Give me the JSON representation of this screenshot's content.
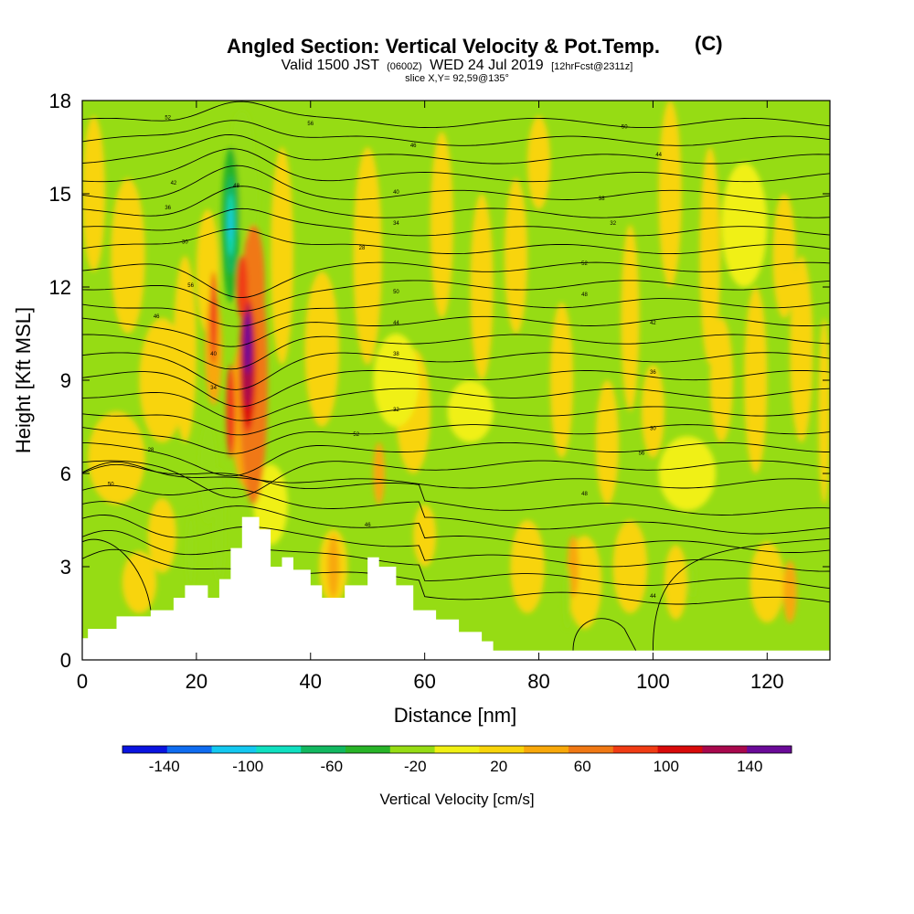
{
  "chart_data": {
    "type": "heatmap",
    "title": "Angled Section: Vertical Velocity & Pot.Temp.",
    "title_unit": "(C)",
    "subtitle_parts": [
      "Valid 1500 JST",
      "(0600Z)",
      "WED 24 Jul 2019",
      "[12hrFcst@2311z]"
    ],
    "slice_label": "slice X,Y= 92,59@135°",
    "xlabel": "Distance [nm]",
    "ylabel": "Height [Kft MSL]",
    "xlim": [
      0,
      131
    ],
    "ylim": [
      0,
      18
    ],
    "x_ticks": [
      0,
      20,
      40,
      60,
      80,
      100,
      120
    ],
    "y_ticks": [
      0,
      3,
      6,
      9,
      12,
      15,
      18
    ],
    "colorbar": {
      "title": "Vertical Velocity [cm/s]",
      "levels": [
        -160,
        -140,
        -120,
        -100,
        -80,
        -60,
        -40,
        -20,
        0,
        20,
        40,
        60,
        80,
        100,
        120,
        140,
        160
      ],
      "colors": [
        "#0a14e0",
        "#0f6cf0",
        "#14c8f0",
        "#10e0c0",
        "#12b860",
        "#28b428",
        "#96dc14",
        "#f0f014",
        "#f8d40a",
        "#f8a80a",
        "#f07814",
        "#f03c14",
        "#d80a0a",
        "#a8084c",
        "#6a0a98"
      ],
      "tick_labels": [
        "-140",
        "-100",
        "-60",
        "-20",
        "20",
        "60",
        "100",
        "140"
      ],
      "tick_values": [
        -140,
        -100,
        -60,
        -20,
        20,
        60,
        100,
        140
      ]
    },
    "contour_labels": [
      "52",
      "56",
      "50",
      "48",
      "46",
      "44",
      "42",
      "40",
      "38",
      "36",
      "34",
      "32",
      "30",
      "28"
    ],
    "terrain": [
      [
        0,
        0.7
      ],
      [
        1,
        1.0
      ],
      [
        6,
        1.4
      ],
      [
        12,
        1.6
      ],
      [
        16,
        2.0
      ],
      [
        18,
        2.4
      ],
      [
        22,
        2.0
      ],
      [
        24,
        2.6
      ],
      [
        26,
        3.6
      ],
      [
        28,
        4.6
      ],
      [
        31,
        4.2
      ],
      [
        33,
        3.0
      ],
      [
        35,
        3.3
      ],
      [
        37,
        2.9
      ],
      [
        40,
        2.4
      ],
      [
        42,
        2.0
      ],
      [
        46,
        2.4
      ],
      [
        50,
        3.3
      ],
      [
        52,
        3.0
      ],
      [
        55,
        2.4
      ],
      [
        58,
        1.6
      ],
      [
        62,
        1.3
      ],
      [
        66,
        0.9
      ],
      [
        70,
        0.6
      ],
      [
        72,
        0.3
      ],
      [
        131,
        0.3
      ]
    ]
  }
}
